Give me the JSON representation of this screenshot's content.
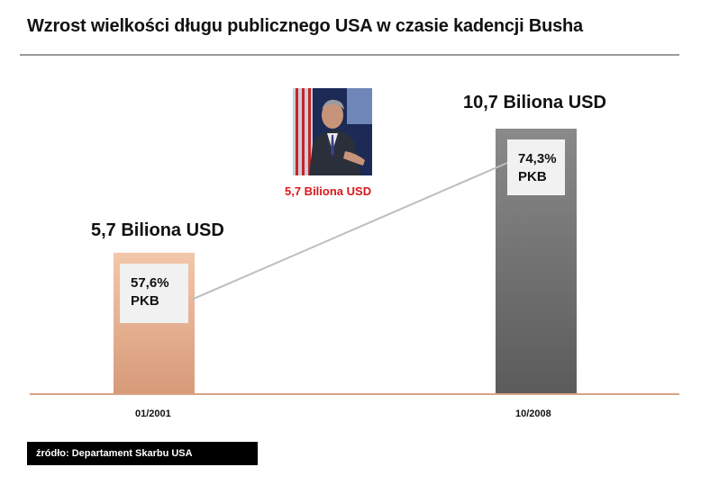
{
  "chart_data": {
    "type": "bar",
    "title": "Wzrost wielkości długu publicznego USA w czasie kadencji Busha",
    "categories": [
      "01/2001",
      "10/2008"
    ],
    "values": [
      5.7,
      10.7
    ],
    "value_labels": [
      "5,7 Biliona USD",
      "10,7 Biliona USD"
    ],
    "pct_of_gdp": [
      57.6,
      74.3
    ],
    "pct_labels": [
      "57,6%",
      "74,3%"
    ],
    "pct_unit": "PKB",
    "ylim": [
      0,
      10.7
    ],
    "grid": false,
    "colors": {
      "bar_2001_top": "#f3c7aa",
      "bar_2001_bottom": "#d79a79",
      "bar_2008_top": "#8a8a8a",
      "bar_2008_bottom": "#5b5b5b",
      "baseline": "#d7a384",
      "connector": "#bdbdbd"
    }
  },
  "portrait": {
    "icon": "portrait-photo",
    "caption": "5,7 Biliona USD",
    "caption_color": "#d9181b"
  },
  "source": "źródło: Departament Skarbu USA"
}
